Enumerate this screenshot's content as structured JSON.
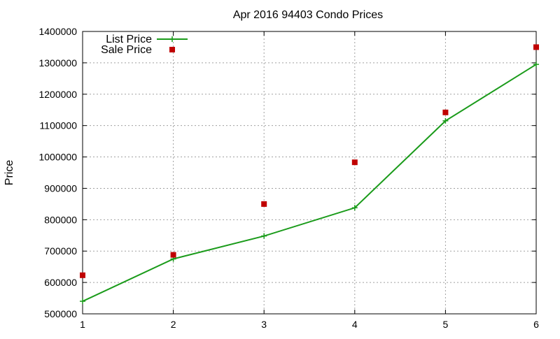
{
  "chart_data": {
    "type": "line",
    "title": "Apr 2016 94403 Condo Prices",
    "xlabel": "",
    "ylabel": "Price",
    "xlim": [
      1,
      6
    ],
    "ylim": [
      500000,
      1400000
    ],
    "x_ticks": [
      "1",
      "2",
      "3",
      "4",
      "5",
      "6"
    ],
    "y_ticks": [
      "500000",
      "600000",
      "700000",
      "800000",
      "900000",
      "1000000",
      "1100000",
      "1200000",
      "1300000",
      "1400000"
    ],
    "grid": true,
    "legend_position": "top-left",
    "series": [
      {
        "name": "List Price",
        "style": "line+cross",
        "color": "#1a9b1a",
        "x": [
          1,
          2,
          3,
          4,
          5,
          6
        ],
        "values": [
          540000,
          675000,
          748000,
          838000,
          1115000,
          1295000
        ]
      },
      {
        "name": "Sale Price",
        "style": "square-points",
        "color": "#c00000",
        "x": [
          1,
          2,
          3,
          4,
          5,
          6
        ],
        "values": [
          623000,
          688000,
          850000,
          983000,
          1142000,
          1350000
        ]
      }
    ]
  }
}
